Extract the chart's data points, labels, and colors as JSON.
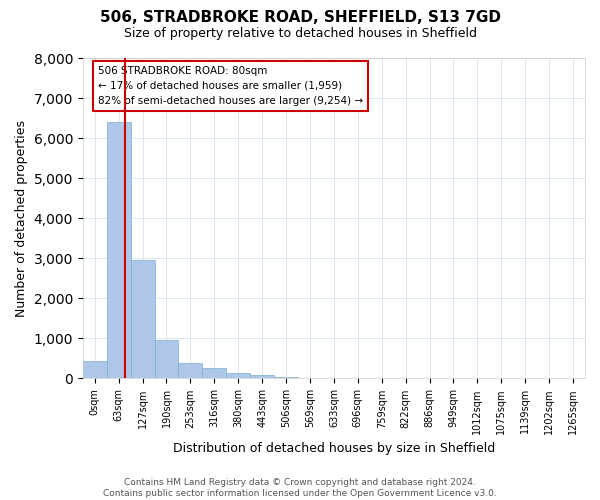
{
  "title": "506, STRADBROKE ROAD, SHEFFIELD, S13 7GD",
  "subtitle": "Size of property relative to detached houses in Sheffield",
  "xlabel": "Distribution of detached houses by size in Sheffield",
  "ylabel": "Number of detached properties",
  "footer_line1": "Contains HM Land Registry data © Crown copyright and database right 2024.",
  "footer_line2": "Contains public sector information licensed under the Open Government Licence v3.0.",
  "annotation_line1": "506 STRADBROKE ROAD: 80sqm",
  "annotation_line2": "← 17% of detached houses are smaller (1,959)",
  "annotation_line3": "82% of semi-detached houses are larger (9,254) →",
  "bar_values": [
    430,
    6400,
    2950,
    960,
    380,
    260,
    145,
    85,
    45,
    20,
    15,
    10,
    8,
    5,
    3,
    2,
    1,
    1,
    1,
    0,
    0
  ],
  "bar_color": "#aec6e8",
  "bar_edge_color": "#7aafd4",
  "ylim": [
    0,
    8000
  ],
  "yticks": [
    0,
    1000,
    2000,
    3000,
    4000,
    5000,
    6000,
    7000,
    8000
  ],
  "xtick_labels": [
    "0sqm",
    "63sqm",
    "127sqm",
    "190sqm",
    "253sqm",
    "316sqm",
    "380sqm",
    "443sqm",
    "506sqm",
    "569sqm",
    "633sqm",
    "696sqm",
    "759sqm",
    "822sqm",
    "886sqm",
    "949sqm",
    "1012sqm",
    "1075sqm",
    "1139sqm",
    "1202sqm",
    "1265sqm"
  ],
  "grid_color": "#d0dce8",
  "background_color": "#ffffff",
  "annotation_box_color": "#cc0000"
}
